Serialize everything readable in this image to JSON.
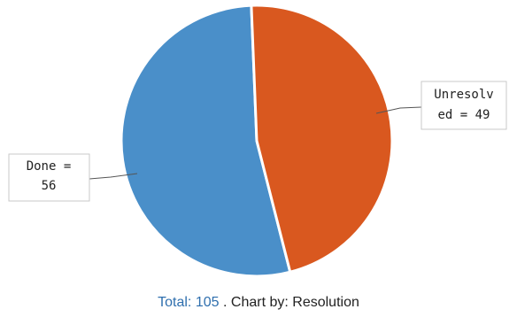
{
  "chart_data": {
    "type": "pie",
    "slices": [
      {
        "label": "Done",
        "value": 56,
        "color": "#4a8fc9",
        "label_lines": [
          "Done =",
          "56"
        ]
      },
      {
        "label": "Unresolved",
        "value": 49,
        "color": "#d9581f",
        "label_lines": [
          "Unresolv",
          "ed = 49"
        ]
      }
    ],
    "separator_color": "#ffffff"
  },
  "footer": {
    "total_label": "Total:",
    "total_value": "105",
    "sep": ".",
    "chart_by_label": "Chart by:",
    "chart_by_value": "Resolution"
  }
}
